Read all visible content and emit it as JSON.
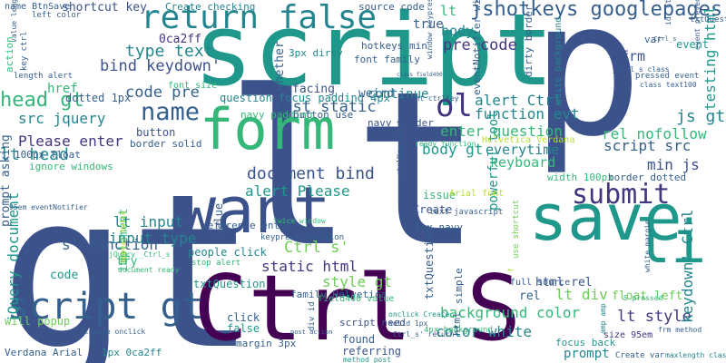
{
  "palette": {
    "navy": "#453581",
    "indigo": "#3b528b",
    "slate": "#355f8d",
    "teal_blue": "#2c728e",
    "teal": "#25858e",
    "green_teal": "#1f988b",
    "green": "#35b779",
    "lime": "#6ece58",
    "yellow_green": "#b5de2b",
    "purple": "#440154"
  },
  "words": [
    {
      "text": "gt"
    },
    {
      "text": "lt"
    },
    {
      "text": "script"
    },
    {
      "text": "p"
    },
    {
      "text": "want"
    },
    {
      "text": "save"
    },
    {
      "text": "Ctrl S"
    },
    {
      "text": "form"
    },
    {
      "text": "return false"
    },
    {
      "text": "li"
    },
    {
      "text": "submit"
    },
    {
      "text": "ol"
    },
    {
      "text": "name"
    },
    {
      "text": "jshotkeys googlepages"
    },
    {
      "text": "script gt"
    },
    {
      "text": "head gt"
    },
    {
      "text": "type text"
    },
    {
      "text": "bind keydown'"
    },
    {
      "text": "lt head"
    },
    {
      "text": "document bind"
    },
    {
      "text": "Please enter"
    },
    {
      "text": "src jquery"
    },
    {
      "text": "code pre"
    },
    {
      "text": "pre code"
    },
    {
      "text": "alert Ctrl"
    },
    {
      "text": "function evt"
    },
    {
      "text": "js gt"
    },
    {
      "text": "test static"
    },
    {
      "text": "enter question"
    },
    {
      "text": "body gt"
    },
    {
      "text": "script src"
    },
    {
      "text": "static html"
    },
    {
      "text": "style gt"
    },
    {
      "text": "Ctrl s'"
    },
    {
      "text": "lt input"
    },
    {
      "text": "input type"
    },
    {
      "text": "background color"
    },
    {
      "text": "color white"
    },
    {
      "text": "lt div"
    },
    {
      "text": "lt style"
    },
    {
      "text": "alert Please"
    },
    {
      "text": "s' function"
    },
    {
      "text": "jQuery document"
    },
    {
      "text": "keydown' Ctrl"
    },
    {
      "text": "testing html"
    },
    {
      "text": "rel nofollow"
    },
    {
      "text": "min js"
    },
    {
      "text": "everytime"
    },
    {
      "text": "keyboard"
    },
    {
      "text": "frm"
    },
    {
      "text": "event"
    },
    {
      "text": "0ca2ff"
    },
    {
      "text": "body"
    },
    {
      "text": "lt"
    },
    {
      "text": "true"
    },
    {
      "text": "continue"
    },
    {
      "text": "whether"
    },
    {
      "text": "facing"
    },
    {
      "text": "weird"
    },
    {
      "text": "href"
    },
    {
      "text": "name BtnSave"
    },
    {
      "text": "shortcut key"
    },
    {
      "text": "Create checking"
    },
    {
      "text": "source code"
    },
    {
      "text": "hotkeys min"
    },
    {
      "text": "font family"
    },
    {
      "text": "3px dirty"
    },
    {
      "text": "dirty border"
    },
    {
      "text": "eventNotifier width"
    },
    {
      "text": "question focus padding 4px"
    },
    {
      "text": "navy padding"
    },
    {
      "text": "button use"
    },
    {
      "text": "navy border"
    },
    {
      "text": "dotted 1px"
    },
    {
      "text": "button"
    },
    {
      "text": "border solid"
    },
    {
      "text": "action"
    },
    {
      "text": "font size"
    },
    {
      "text": "100px float"
    },
    {
      "text": "ignore windows"
    },
    {
      "text": "prompt asking"
    },
    {
      "text": "implement"
    },
    {
      "text": "value"
    },
    {
      "text": "reference enter"
    },
    {
      "text": "twice window"
    },
    {
      "text": "try"
    },
    {
      "text": "issue"
    },
    {
      "text": "Create"
    },
    {
      "text": "powerful tool"
    },
    {
      "text": "1px navy"
    },
    {
      "text": "text javascript"
    },
    {
      "text": "Arial font"
    },
    {
      "text": "width 100px"
    },
    {
      "text": "border dotted"
    },
    {
      "text": "Helvetica Verdana"
    },
    {
      "text": "rel"
    },
    {
      "text": "html rel"
    },
    {
      "text": "full source"
    },
    {
      "text": "float left"
    },
    {
      "text": "people click"
    },
    {
      "text": "keypress function"
    },
    {
      "text": "txtQuestion"
    },
    {
      "text": "stop alert"
    },
    {
      "text": "code"
    },
    {
      "text": "family Helvetica"
    },
    {
      "text": "will popup"
    },
    {
      "text": "click"
    },
    {
      "text": "false"
    },
    {
      "text": "margin 3px"
    },
    {
      "text": "script need"
    },
    {
      "text": "found"
    },
    {
      "text": "referring"
    },
    {
      "text": "html"
    },
    {
      "text": "prompt"
    },
    {
      "text": "focus back"
    },
    {
      "text": "size 95em"
    },
    {
      "text": "Verdana Arial"
    },
    {
      "text": "1px 0ca2ff"
    },
    {
      "text": "method post"
    },
    {
      "text": "Create var"
    },
    {
      "text": "maxlength class"
    },
    {
      "text": "BtnSave onclick"
    },
    {
      "text": "jQuery _Ctrl_s"
    },
    {
      "text": "appear twice"
    },
    {
      "text": "div id"
    },
    {
      "text": "post action"
    },
    {
      "text": "amp amp"
    },
    {
      "text": "frm method"
    },
    {
      "text": "S pressed"
    },
    {
      "text": "id _Ctrl_s"
    },
    {
      "text": "pressed event"
    },
    {
      "text": "class text100"
    },
    {
      "text": "white background"
    },
    {
      "text": "window keypress"
    },
    {
      "text": "class field400"
    },
    {
      "text": "event ctrlKey"
    },
    {
      "text": "length alert"
    },
    {
      "text": "value length"
    },
    {
      "text": "left color"
    },
    {
      "text": "key ctrl"
    },
    {
      "text": "document ready"
    },
    {
      "text": "onclick Create"
    },
    {
      "text": "Ctrl_s' return"
    },
    {
      "text": "ready function"
    },
    {
      "text": "ctrlKey alert"
    },
    {
      "text": "simple"
    },
    {
      "text": "4px background"
    },
    {
      "text": "solid 1px"
    },
    {
      "text": "field400 value"
    },
    {
      "text": "txtQuestion"
    },
    {
      "text": "f"
    },
    {
      "text": "white margin"
    },
    {
      "text": "use shortcut"
    },
    {
      "text": "95em eventNotifier"
    },
    {
      "text": "_Ctrl_s class"
    },
    {
      "text": "event preventDefault"
    },
    {
      "text": "txtQuestion maxlength"
    },
    {
      "text": "_Ctrl_s"
    },
    {
      "text": "var"
    },
    {
      "text": "f"
    }
  ]
}
